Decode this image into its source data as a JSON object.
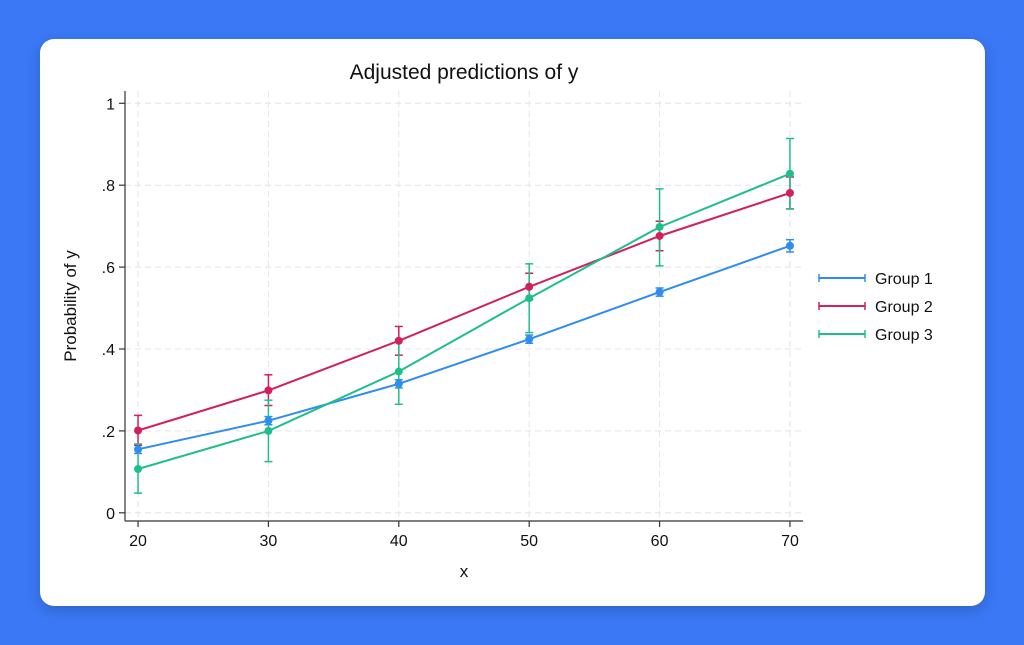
{
  "chart_data": {
    "type": "line",
    "title": "Adjusted predictions of y",
    "xlabel": "x",
    "ylabel": "Probability of y",
    "x": [
      20,
      30,
      40,
      50,
      60,
      70
    ],
    "xticks": [
      20,
      30,
      40,
      50,
      60,
      70
    ],
    "xtick_labels": [
      "20",
      "30",
      "40",
      "50",
      "60",
      "70"
    ],
    "yticks": [
      0,
      0.2,
      0.4,
      0.6,
      0.8,
      1
    ],
    "ytick_labels": [
      "0",
      ".2",
      ".4",
      ".6",
      ".8",
      "1"
    ],
    "xlim": [
      19,
      71
    ],
    "ylim": [
      -0.02,
      1.03
    ],
    "grid": true,
    "error_bars": true,
    "legend_position": "right",
    "series": [
      {
        "name": "Group 1",
        "color": "#2f8cf0",
        "values": [
          0.155,
          0.225,
          0.315,
          0.424,
          0.539,
          0.652
        ],
        "lower": [
          0.145,
          0.215,
          0.305,
          0.414,
          0.529,
          0.637
        ],
        "upper": [
          0.165,
          0.235,
          0.325,
          0.434,
          0.549,
          0.667
        ]
      },
      {
        "name": "Group 2",
        "color": "#d1205a",
        "values": [
          0.201,
          0.299,
          0.42,
          0.552,
          0.676,
          0.781
        ],
        "lower": [
          0.165,
          0.262,
          0.385,
          0.52,
          0.64,
          0.742
        ],
        "upper": [
          0.238,
          0.337,
          0.455,
          0.585,
          0.712,
          0.82
        ]
      },
      {
        "name": "Group 3",
        "color": "#1fbf8c",
        "values": [
          0.107,
          0.2,
          0.345,
          0.524,
          0.698,
          0.828
        ],
        "lower": [
          0.048,
          0.125,
          0.265,
          0.44,
          0.603,
          0.742
        ],
        "upper": [
          0.168,
          0.275,
          0.424,
          0.608,
          0.791,
          0.914
        ]
      }
    ]
  }
}
